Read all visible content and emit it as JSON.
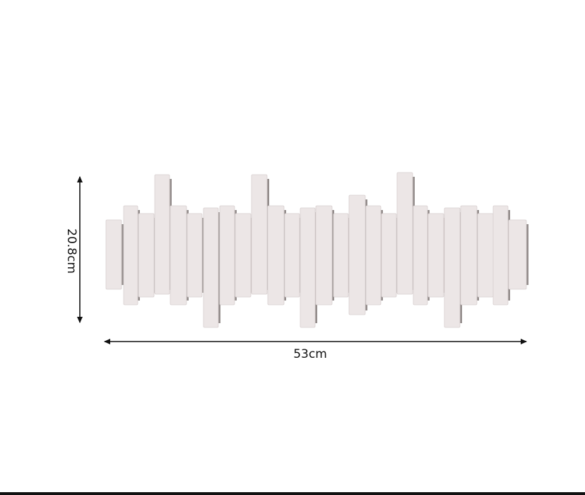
{
  "dimensions": {
    "height_label": "20.8cm",
    "width_label": "53cm"
  },
  "colors": {
    "panel": "#ece6e6",
    "panel_edge": "#d8d0d0",
    "shadow": "#3a2e2c",
    "arrow": "#111111"
  }
}
